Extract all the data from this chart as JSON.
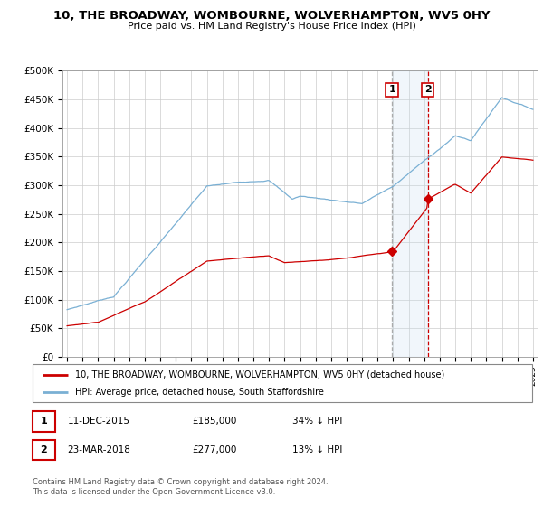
{
  "title": "10, THE BROADWAY, WOMBOURNE, WOLVERHAMPTON, WV5 0HY",
  "subtitle": "Price paid vs. HM Land Registry's House Price Index (HPI)",
  "ylim": [
    0,
    500000
  ],
  "yticks": [
    0,
    50000,
    100000,
    150000,
    200000,
    250000,
    300000,
    350000,
    400000,
    450000,
    500000
  ],
  "ytick_labels": [
    "£0",
    "£50K",
    "£100K",
    "£150K",
    "£200K",
    "£250K",
    "£300K",
    "£350K",
    "£400K",
    "£450K",
    "£500K"
  ],
  "hpi_color": "#7ab0d4",
  "price_color": "#cc0000",
  "vline1_color": "#aaaaaa",
  "vline2_color": "#cc0000",
  "highlight_color": "#ddeeff",
  "transaction1_date": "11-DEC-2015",
  "transaction1_price": 185000,
  "transaction1_year": 2015.92,
  "transaction1_hpi_str": "34% ↓ HPI",
  "transaction2_date": "23-MAR-2018",
  "transaction2_price": 277000,
  "transaction2_year": 2018.22,
  "transaction2_hpi_str": "13% ↓ HPI",
  "legend_label_price": "10, THE BROADWAY, WOMBOURNE, WOLVERHAMPTON, WV5 0HY (detached house)",
  "legend_label_hpi": "HPI: Average price, detached house, South Staffordshire",
  "footer": "Contains HM Land Registry data © Crown copyright and database right 2024.\nThis data is licensed under the Open Government Licence v3.0.",
  "x_start_year": 1995,
  "x_end_year": 2025
}
